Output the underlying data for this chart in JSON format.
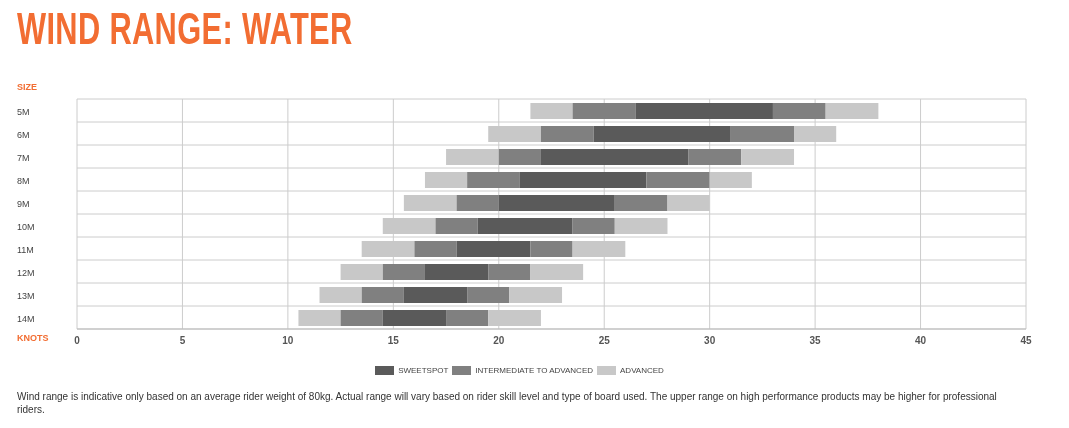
{
  "chart_data": {
    "type": "bar",
    "orientation": "horizontal",
    "title": "WIND RANGE: WATER",
    "xlabel": "KNOTS",
    "ylabel": "SIZE",
    "categories": [
      "5M",
      "6M",
      "7M",
      "8M",
      "9M",
      "10M",
      "11M",
      "12M",
      "13M",
      "14M"
    ],
    "series": [
      {
        "name": "ADVANCED",
        "color": "#c8c8c8",
        "base": [
          21.5,
          19.5,
          17.5,
          16.5,
          15.5,
          14.5,
          13.5,
          12.5,
          11.5,
          10.5
        ],
        "values": [
          2,
          2.5,
          2.5,
          2,
          2.5,
          2.5,
          2.5,
          2,
          2,
          2
        ]
      },
      {
        "name": "INTERMEDIATE TO ADVANCED",
        "color": "#808080",
        "base": [
          23.5,
          22,
          20,
          18.5,
          18,
          17,
          16,
          14.5,
          13.5,
          12.5
        ],
        "values": [
          3,
          2.5,
          2,
          2.5,
          2,
          2,
          2,
          2,
          2,
          2
        ]
      },
      {
        "name": "SWEETSPOT",
        "color": "#5a5a5a",
        "base": [
          26.5,
          24.5,
          22,
          21,
          20,
          19,
          18,
          16.5,
          15.5,
          14.5
        ],
        "values": [
          6.5,
          6.5,
          7,
          6,
          5.5,
          4.5,
          3.5,
          3,
          3,
          3
        ]
      },
      {
        "color": "#808080",
        "base": [
          33,
          31,
          29,
          27,
          25.5,
          23.5,
          21.5,
          19.5,
          18.5,
          17.5
        ],
        "values": [
          2.5,
          3,
          2.5,
          3,
          2.5,
          2,
          2,
          2,
          2,
          2
        ]
      },
      {
        "color": "#c8c8c8",
        "base": [
          35.5,
          34,
          31.5,
          30,
          28,
          25.5,
          23.5,
          21.5,
          20.5,
          19.5
        ],
        "values": [
          2.5,
          2,
          2.5,
          2,
          2,
          2.5,
          2.5,
          2.5,
          2.5,
          2.5
        ]
      }
    ],
    "xlim": [
      0,
      45
    ],
    "xticks": [
      0,
      5,
      10,
      15,
      20,
      25,
      30,
      35,
      40,
      45
    ],
    "grid": true,
    "legend": "bottom",
    "annotations": [
      "Wind range is indicative only based on an average rider weight of 80kg. Actual range will vary based on rider skill level and type of board used. The upper range on high performance products may be higher for professional riders."
    ]
  }
}
